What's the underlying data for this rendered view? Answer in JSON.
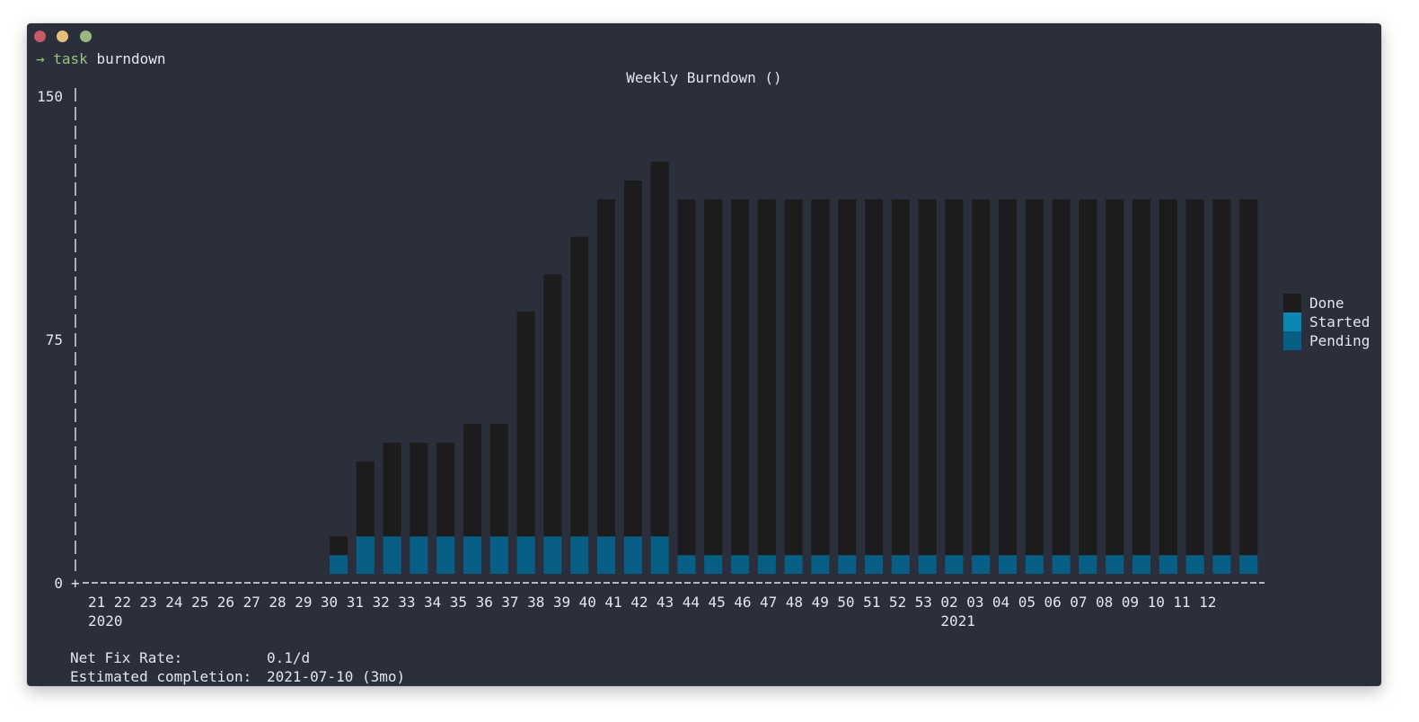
{
  "terminal": {
    "prompt_symbol": "→",
    "command": "task",
    "argument": "burndown"
  },
  "report": {
    "net_fix_rate_label": "Net Fix Rate:",
    "net_fix_rate_value": "0.1/d",
    "completion_label": "Estimated completion:",
    "completion_value": "2021-07-10 (3mo)"
  },
  "colors": {
    "background": "#2b2e3b",
    "done": "#1c1c1c",
    "started": "#0a87b2",
    "pending": "#075f86"
  },
  "chart_data": {
    "type": "bar",
    "stacked": true,
    "title": "Weekly Burndown ()",
    "xlabel": "",
    "ylabel": "",
    "ylim": [
      0,
      150
    ],
    "y_ticks": [
      "0",
      "75",
      "150"
    ],
    "legend_position": "right",
    "categories": [
      "21",
      "22",
      "23",
      "24",
      "25",
      "26",
      "27",
      "28",
      "29",
      "30",
      "31",
      "32",
      "33",
      "34",
      "35",
      "36",
      "37",
      "38",
      "39",
      "40",
      "41",
      "42",
      "43",
      "44",
      "45",
      "46",
      "47",
      "48",
      "49",
      "50",
      "51",
      "52",
      "53",
      "02",
      "03",
      "04",
      "05",
      "06",
      "07",
      "08",
      "09",
      "10",
      "11",
      "12"
    ],
    "year_labels": [
      {
        "category": "21",
        "label": "2020"
      },
      {
        "category": "02",
        "label": "2021"
      }
    ],
    "series": [
      {
        "name": "Pending",
        "values": [
          0,
          0,
          0,
          0,
          0,
          0,
          0,
          0,
          0,
          6,
          12,
          12,
          12,
          12,
          12,
          12,
          12,
          12,
          12,
          12,
          12,
          12,
          6,
          6,
          6,
          6,
          6,
          6,
          6,
          6,
          6,
          6,
          6,
          6,
          6,
          6,
          6,
          6,
          6,
          6,
          6,
          6,
          6,
          6
        ]
      },
      {
        "name": "Started",
        "values": [
          0,
          0,
          0,
          0,
          0,
          0,
          0,
          0,
          0,
          0,
          0,
          0,
          0,
          0,
          0,
          0,
          0,
          0,
          0,
          0,
          0,
          0,
          0,
          0,
          0,
          0,
          0,
          0,
          0,
          0,
          0,
          0,
          0,
          0,
          0,
          0,
          0,
          0,
          0,
          0,
          0,
          0,
          0,
          0
        ]
      },
      {
        "name": "Done",
        "values": [
          0,
          0,
          0,
          0,
          0,
          0,
          0,
          0,
          0,
          6,
          24,
          30,
          30,
          30,
          36,
          36,
          72,
          84,
          96,
          108,
          114,
          120,
          114,
          114,
          114,
          114,
          114,
          114,
          114,
          114,
          114,
          114,
          114,
          114,
          114,
          114,
          114,
          114,
          114,
          114,
          114,
          114,
          114,
          114
        ]
      }
    ]
  }
}
